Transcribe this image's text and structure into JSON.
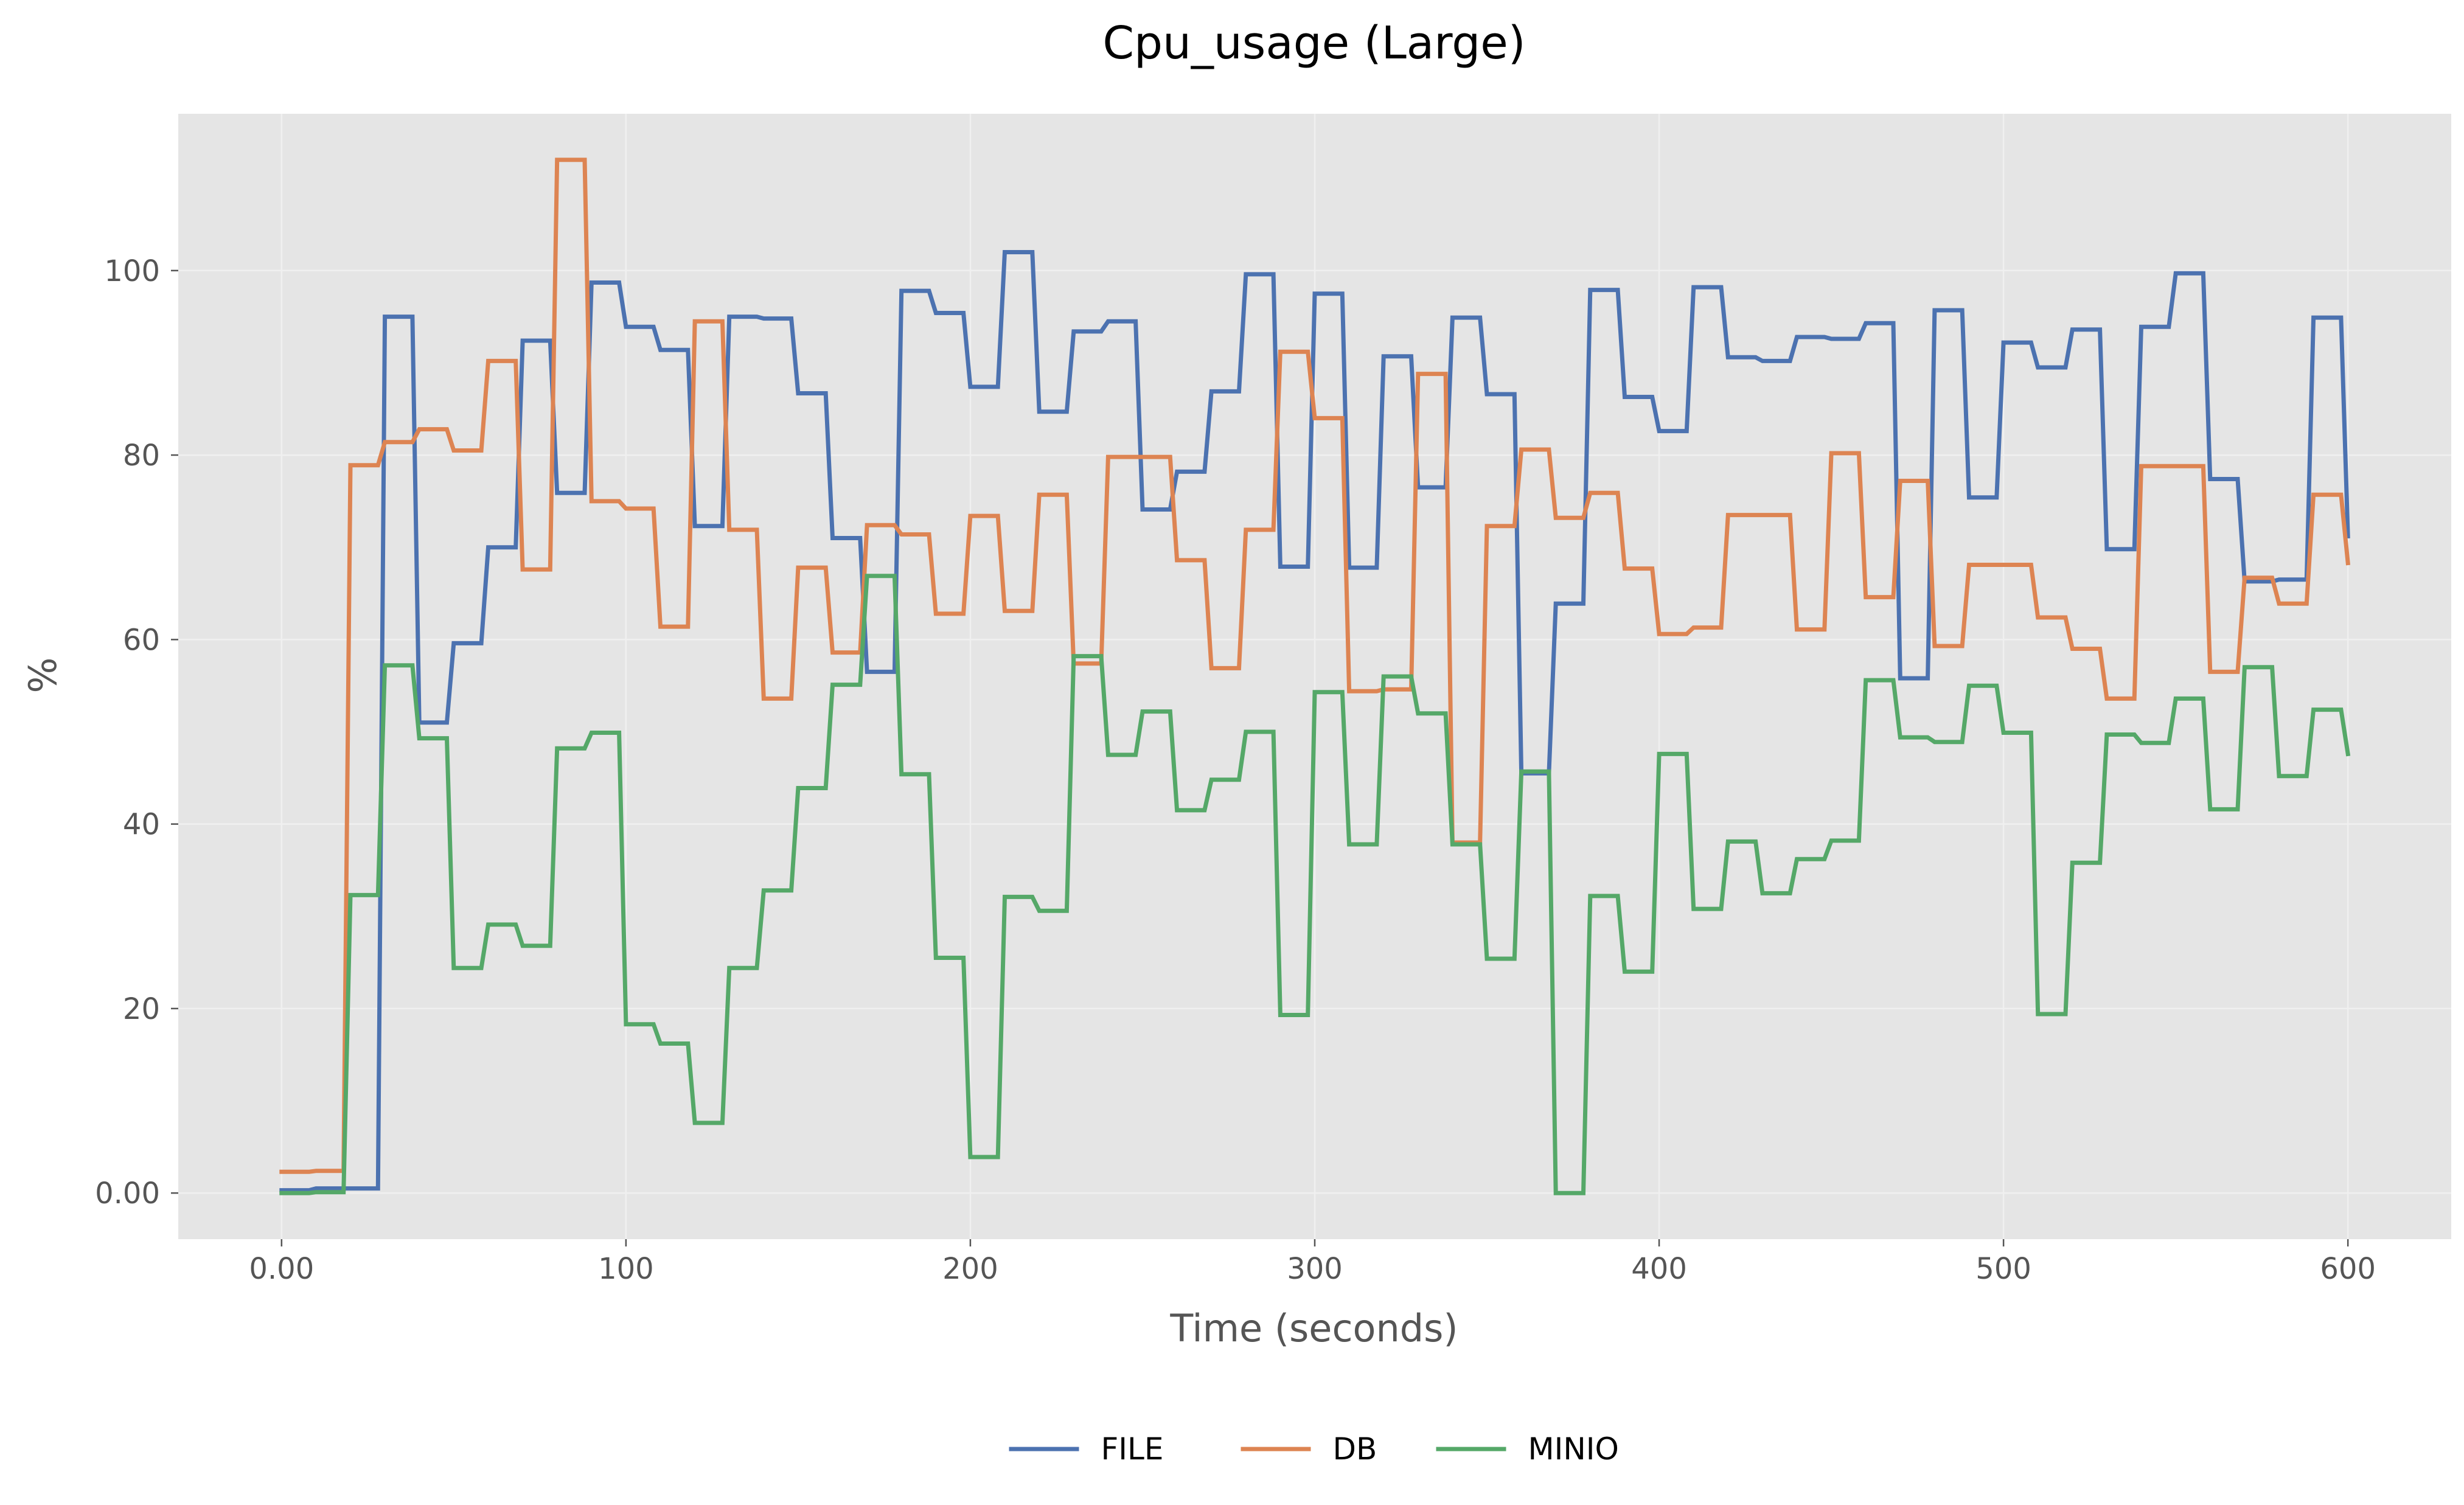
{
  "chart_data": {
    "type": "line",
    "title": "Cpu_usage (Large)",
    "xlabel": "Time (seconds)",
    "ylabel": "%",
    "xlim": [
      -30,
      630
    ],
    "ylim": [
      -5,
      117
    ],
    "grid": true,
    "legend_position": "bottom-center",
    "xticks": [
      {
        "value": 0,
        "label": "0.00"
      },
      {
        "value": 100,
        "label": "100"
      },
      {
        "value": 200,
        "label": "200"
      },
      {
        "value": 300,
        "label": "300"
      },
      {
        "value": 400,
        "label": "400"
      },
      {
        "value": 500,
        "label": "500"
      },
      {
        "value": 600,
        "label": "600"
      }
    ],
    "yticks": [
      {
        "value": 0,
        "label": "0.00"
      },
      {
        "value": 20,
        "label": "20"
      },
      {
        "value": 40,
        "label": "40"
      },
      {
        "value": 60,
        "label": "60"
      },
      {
        "value": 80,
        "label": "80"
      },
      {
        "value": 100,
        "label": "100"
      }
    ],
    "series": [
      {
        "name": "FILE",
        "color": "#4c72b0",
        "x": [
          0,
          10,
          20,
          30,
          40,
          50,
          60,
          70,
          80,
          90,
          100,
          110,
          120,
          130,
          140,
          150,
          160,
          170,
          180,
          190,
          200,
          210,
          220,
          230,
          240,
          250,
          260,
          270,
          280,
          290,
          300,
          310,
          320,
          330,
          340,
          350,
          360,
          370,
          380,
          390,
          400,
          410,
          420,
          430,
          440,
          450,
          460,
          470,
          480,
          490,
          500,
          510,
          520,
          530,
          540,
          550,
          560,
          570,
          580,
          590,
          600
        ],
        "values": [
          0.3,
          0.5,
          0.5,
          95.0,
          51.0,
          59.6,
          70.0,
          92.4,
          75.9,
          98.7,
          93.9,
          91.4,
          72.3,
          95.0,
          94.8,
          86.7,
          71.0,
          56.5,
          97.8,
          95.4,
          87.4,
          102.0,
          84.7,
          93.4,
          94.5,
          74.1,
          78.2,
          86.9,
          99.6,
          67.9,
          97.5,
          67.8,
          90.7,
          76.5,
          94.9,
          86.6,
          45.5,
          63.9,
          97.9,
          86.3,
          82.6,
          98.2,
          90.6,
          90.2,
          92.8,
          92.6,
          94.3,
          55.8,
          95.7,
          75.4,
          92.2,
          89.5,
          93.6,
          69.8,
          93.9,
          99.7,
          77.4,
          66.3,
          66.5,
          94.9,
          71.2
        ]
      },
      {
        "name": "DB",
        "color": "#dd8452",
        "x": [
          0,
          10,
          20,
          30,
          40,
          50,
          60,
          70,
          80,
          90,
          100,
          110,
          120,
          130,
          140,
          150,
          160,
          170,
          180,
          190,
          200,
          210,
          220,
          230,
          240,
          250,
          260,
          270,
          280,
          290,
          300,
          310,
          320,
          330,
          340,
          350,
          360,
          370,
          380,
          390,
          400,
          410,
          420,
          430,
          440,
          450,
          460,
          470,
          480,
          490,
          500,
          510,
          520,
          530,
          540,
          550,
          560,
          570,
          580,
          590,
          600
        ],
        "values": [
          2.3,
          2.4,
          78.9,
          81.4,
          82.8,
          80.5,
          90.2,
          67.6,
          112.0,
          75.0,
          74.2,
          61.4,
          94.5,
          71.9,
          53.6,
          67.8,
          58.6,
          72.4,
          71.4,
          62.8,
          73.4,
          63.1,
          75.7,
          57.4,
          79.8,
          79.8,
          68.6,
          56.9,
          71.9,
          91.2,
          84.0,
          54.4,
          54.6,
          88.8,
          38.0,
          72.3,
          80.6,
          73.2,
          75.9,
          67.7,
          60.6,
          61.3,
          73.5,
          73.5,
          61.1,
          80.2,
          64.6,
          77.2,
          59.3,
          68.1,
          68.1,
          62.4,
          59.0,
          53.6,
          78.8,
          78.8,
          56.5,
          66.7,
          63.9,
          75.7,
          68.3
        ]
      },
      {
        "name": "MINIO",
        "color": "#55a868",
        "x": [
          0,
          10,
          20,
          30,
          40,
          50,
          60,
          70,
          80,
          90,
          100,
          110,
          120,
          130,
          140,
          150,
          160,
          170,
          180,
          190,
          200,
          210,
          220,
          230,
          240,
          250,
          260,
          270,
          280,
          290,
          300,
          310,
          320,
          330,
          340,
          350,
          360,
          370,
          380,
          390,
          400,
          410,
          420,
          430,
          440,
          450,
          460,
          470,
          480,
          490,
          500,
          510,
          520,
          530,
          540,
          550,
          560,
          570,
          580,
          590,
          600
        ],
        "values": [
          0.0,
          0.1,
          32.3,
          57.2,
          49.3,
          24.4,
          29.1,
          26.8,
          48.2,
          49.9,
          18.3,
          16.2,
          7.6,
          24.4,
          32.8,
          43.9,
          55.1,
          66.9,
          45.4,
          25.5,
          3.9,
          32.1,
          30.6,
          58.2,
          47.5,
          52.2,
          41.5,
          44.8,
          50.0,
          19.3,
          54.3,
          37.8,
          56.0,
          52.0,
          37.8,
          25.4,
          45.7,
          0.0,
          32.2,
          24.0,
          47.6,
          30.8,
          38.1,
          32.5,
          36.2,
          38.2,
          55.6,
          49.4,
          48.9,
          55.0,
          49.9,
          19.4,
          35.8,
          49.7,
          48.8,
          53.6,
          41.6,
          57.0,
          45.2,
          52.4,
          47.6
        ]
      }
    ]
  }
}
